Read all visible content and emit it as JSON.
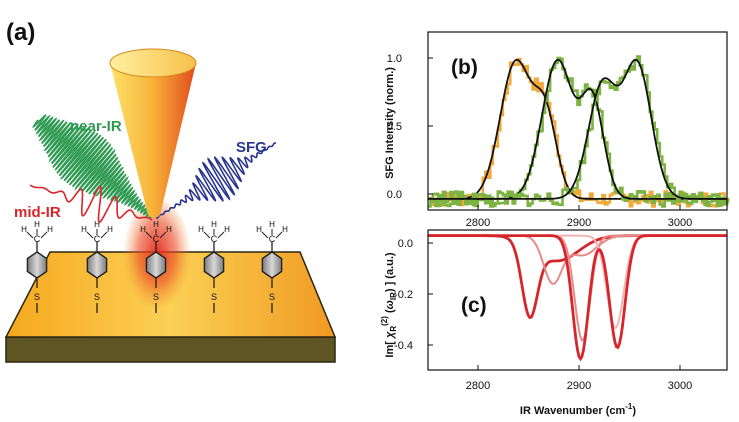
{
  "figure": {
    "panel_a": {
      "label": "(a)",
      "beams": {
        "near_ir": "near-IR",
        "mid_ir": "mid-IR",
        "sfg": "SFG"
      },
      "molecule": {
        "carbon": "C",
        "hydrogen": "H",
        "sulfur": "S"
      },
      "colors": {
        "near_ir": "#2f9a52",
        "mid_ir": "#d6262b",
        "sfg": "#2a3590",
        "tip": "#f5a623",
        "surface": "#f29a1f"
      }
    },
    "panel_b": {
      "label": "(b)"
    },
    "panel_c": {
      "label": "(c)"
    }
  },
  "chart_data": [
    {
      "id": "b",
      "type": "line",
      "title": "",
      "ylabel": "SFG Intensity (norm.)",
      "xlabel": "",
      "xlim": [
        2750,
        3050
      ],
      "ylim": [
        -0.08,
        1.2
      ],
      "xticks": [
        2800,
        2900,
        3000
      ],
      "yticks": [
        0.0,
        0.5,
        1.0
      ],
      "ytick_labels": [
        "0.0",
        "0.5",
        "1.0"
      ],
      "series": [
        {
          "name": "orange spectrum",
          "color": "#f2a93b",
          "peaks": [
            {
              "center": 2838,
              "width": 22,
              "amp": 1.0
            },
            {
              "center": 2868,
              "width": 16,
              "amp": 0.58
            }
          ]
        },
        {
          "name": "green spectrum (1)",
          "color": "#7cb342",
          "peaks": [
            {
              "center": 2880,
              "width": 22,
              "amp": 1.0
            },
            {
              "center": 2915,
              "width": 16,
              "amp": 0.7
            }
          ]
        },
        {
          "name": "green spectrum (2)",
          "color": "#7cb342",
          "peaks": [
            {
              "center": 2925,
              "width": 20,
              "amp": 0.85
            },
            {
              "center": 2960,
              "width": 20,
              "amp": 1.0
            }
          ]
        }
      ]
    },
    {
      "id": "c",
      "type": "line",
      "title": "",
      "ylabel": "Im[ χR(2)(ωIR) ] (a.u.)",
      "xlabel": "IR Wavenumber (cm⁻¹)",
      "xlim": [
        2750,
        3050
      ],
      "ylim": [
        -0.48,
        0.02
      ],
      "xticks": [
        2800,
        2900,
        3000
      ],
      "xtick_labels": [
        "2800",
        "2900",
        "3000"
      ],
      "yticks": [
        0.0,
        -0.2,
        -0.4
      ],
      "ytick_labels": [
        "0.0",
        "-0.2",
        "-0.4"
      ],
      "series": [
        {
          "name": "curve 1",
          "color": "#d6262b",
          "peaks": [
            {
              "center": 2852,
              "width": 11,
              "amp": -0.255
            },
            {
              "center": 2880,
              "width": 30,
              "amp": -0.09
            }
          ]
        },
        {
          "name": "curve 2",
          "color": "#e88a8a",
          "peaks": [
            {
              "center": 2875,
              "width": 13,
              "amp": -0.165
            },
            {
              "center": 2905,
              "width": 20,
              "amp": -0.07
            }
          ]
        },
        {
          "name": "curve 3",
          "color": "#e88a8a",
          "peaks": [
            {
              "center": 2905,
              "width": 11,
              "amp": -0.375
            }
          ]
        },
        {
          "name": "curve 4",
          "color": "#f3b4b4",
          "peaks": [
            {
              "center": 2938,
              "width": 12,
              "amp": -0.33
            }
          ]
        },
        {
          "name": "curve 5",
          "color": "#d6262b",
          "peaks": [
            {
              "center": 2903,
              "width": 11,
              "amp": -0.44
            },
            {
              "center": 2940,
              "width": 11,
              "amp": -0.4
            }
          ]
        }
      ]
    }
  ]
}
